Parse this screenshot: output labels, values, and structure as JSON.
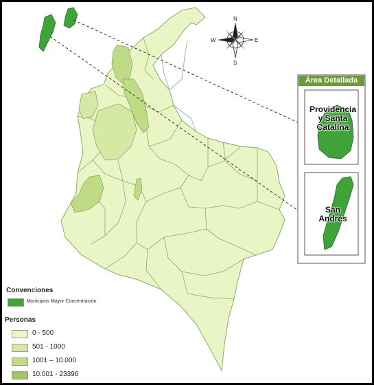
{
  "inset": {
    "title": "Área Detallada",
    "island_1_label": "Providencia y Santa Catalina",
    "island_2_label": "San Andrés"
  },
  "compass": {
    "n": "N",
    "s": "S",
    "e": "E",
    "w": "W"
  },
  "legend": {
    "conventions_title": "Convenciones",
    "municipality_label": "Municipios Mayor Concentración",
    "municipality_color": "#3fa33a",
    "persons_title": "Personas",
    "classes": [
      {
        "label": "0 - 500",
        "color": "#eaf5c6"
      },
      {
        "label": "501 - 1000",
        "color": "#d6e9a4"
      },
      {
        "label": "1001 – 10.000",
        "color": "#c0db86"
      },
      {
        "label": "10.001 - 23396",
        "color": "#9ec85f"
      }
    ]
  }
}
